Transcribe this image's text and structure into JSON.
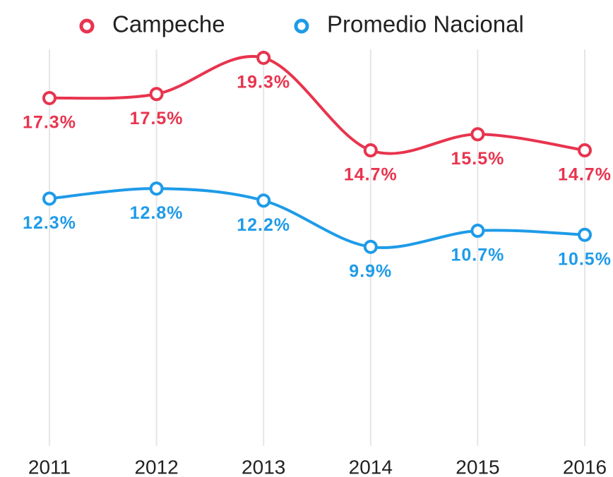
{
  "chart_data": {
    "type": "line",
    "categories": [
      "2011",
      "2012",
      "2013",
      "2014",
      "2015",
      "2016"
    ],
    "series": [
      {
        "name": "Campeche",
        "color": "#e8344e",
        "values": [
          17.3,
          17.5,
          19.3,
          14.7,
          15.5,
          14.7
        ],
        "value_labels": [
          "17.3%",
          "17.5%",
          "19.3%",
          "14.7%",
          "15.5%",
          "14.7%"
        ]
      },
      {
        "name": "Promedio Nacional",
        "color": "#1e9be8",
        "values": [
          12.3,
          12.8,
          12.2,
          9.9,
          10.7,
          10.5
        ],
        "value_labels": [
          "12.3%",
          "12.8%",
          "12.2%",
          "9.9%",
          "10.7%",
          "10.5%"
        ]
      }
    ],
    "ylim": [
      0,
      20
    ],
    "grid": true,
    "legend": "top"
  }
}
